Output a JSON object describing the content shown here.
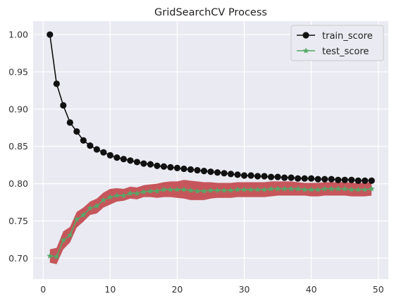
{
  "chart_data": {
    "type": "line",
    "title": "GridSearchCV Process",
    "xlabel": "",
    "ylabel": "",
    "xlim": [
      -1.5,
      51.5
    ],
    "ylim": [
      0.672,
      1.018
    ],
    "x_ticks": [
      0,
      10,
      20,
      30,
      40,
      50
    ],
    "y_ticks": [
      0.7,
      0.75,
      0.8,
      0.85,
      0.9,
      0.95,
      1.0
    ],
    "y_tick_labels": [
      "0.70",
      "0.75",
      "0.80",
      "0.85",
      "0.90",
      "0.95",
      "1.00"
    ],
    "grid": true,
    "legend_position": "top-right",
    "x": [
      1,
      2,
      3,
      4,
      5,
      6,
      7,
      8,
      9,
      10,
      11,
      12,
      13,
      14,
      15,
      16,
      17,
      18,
      19,
      20,
      21,
      22,
      23,
      24,
      25,
      26,
      27,
      28,
      29,
      30,
      31,
      32,
      33,
      34,
      35,
      36,
      37,
      38,
      39,
      40,
      41,
      42,
      43,
      44,
      45,
      46,
      47,
      48,
      49
    ],
    "series": [
      {
        "name": "train_score",
        "color": "#111111",
        "marker": "circle",
        "values": [
          1.0,
          0.934,
          0.905,
          0.882,
          0.87,
          0.858,
          0.851,
          0.846,
          0.842,
          0.838,
          0.835,
          0.833,
          0.831,
          0.829,
          0.827,
          0.826,
          0.824,
          0.823,
          0.822,
          0.821,
          0.82,
          0.819,
          0.818,
          0.817,
          0.816,
          0.815,
          0.814,
          0.813,
          0.812,
          0.811,
          0.811,
          0.81,
          0.81,
          0.809,
          0.809,
          0.808,
          0.808,
          0.807,
          0.807,
          0.807,
          0.806,
          0.806,
          0.806,
          0.805,
          0.805,
          0.805,
          0.804,
          0.804,
          0.804
        ]
      },
      {
        "name": "test_score",
        "color": "#55a868",
        "marker": "star",
        "band_color": "#c44e52",
        "values": [
          0.703,
          0.702,
          0.724,
          0.731,
          0.752,
          0.758,
          0.767,
          0.77,
          0.778,
          0.782,
          0.784,
          0.784,
          0.787,
          0.787,
          0.789,
          0.79,
          0.79,
          0.792,
          0.792,
          0.792,
          0.792,
          0.791,
          0.79,
          0.79,
          0.791,
          0.791,
          0.791,
          0.791,
          0.792,
          0.792,
          0.792,
          0.792,
          0.792,
          0.793,
          0.793,
          0.793,
          0.793,
          0.793,
          0.792,
          0.792,
          0.792,
          0.793,
          0.793,
          0.793,
          0.793,
          0.792,
          0.792,
          0.792,
          0.793
        ],
        "band_lower": [
          0.694,
          0.692,
          0.712,
          0.721,
          0.741,
          0.749,
          0.758,
          0.76,
          0.768,
          0.772,
          0.776,
          0.777,
          0.78,
          0.779,
          0.782,
          0.782,
          0.781,
          0.782,
          0.782,
          0.781,
          0.78,
          0.778,
          0.778,
          0.778,
          0.78,
          0.781,
          0.781,
          0.781,
          0.782,
          0.782,
          0.782,
          0.782,
          0.782,
          0.783,
          0.784,
          0.784,
          0.784,
          0.784,
          0.784,
          0.783,
          0.783,
          0.784,
          0.784,
          0.784,
          0.784,
          0.783,
          0.783,
          0.783,
          0.784
        ],
        "band_upper": [
          0.712,
          0.714,
          0.736,
          0.742,
          0.762,
          0.768,
          0.776,
          0.78,
          0.788,
          0.793,
          0.794,
          0.793,
          0.796,
          0.795,
          0.798,
          0.799,
          0.8,
          0.802,
          0.803,
          0.803,
          0.805,
          0.804,
          0.803,
          0.802,
          0.802,
          0.801,
          0.801,
          0.801,
          0.802,
          0.802,
          0.802,
          0.802,
          0.802,
          0.803,
          0.803,
          0.803,
          0.803,
          0.802,
          0.801,
          0.801,
          0.801,
          0.802,
          0.802,
          0.802,
          0.802,
          0.801,
          0.801,
          0.801,
          0.802
        ]
      }
    ]
  }
}
